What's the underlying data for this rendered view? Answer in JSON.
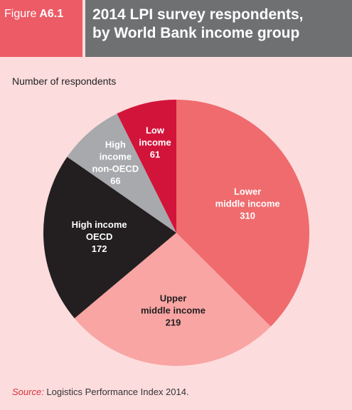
{
  "header": {
    "figure_word": "Figure",
    "figure_number": "A6.1",
    "title_line1": "2014 LPI survey respondents,",
    "title_line2": "by World Bank income group"
  },
  "y_label": "Number of respondents",
  "source": {
    "prefix": "Source:",
    "text": " Logistics Performance Index 2014."
  },
  "chart_data": {
    "type": "pie",
    "title": "2014 LPI survey respondents, by World Bank income group",
    "ylabel": "Number of respondents",
    "slices": [
      {
        "label_lines": [
          "Lower",
          "middle income"
        ],
        "value": 310,
        "color": "#ef6b6e",
        "text_color": "#ffffff"
      },
      {
        "label_lines": [
          "Upper",
          "middle income"
        ],
        "value": 219,
        "color": "#f8a5a3",
        "text_color": "#231f20"
      },
      {
        "label_lines": [
          "High income",
          "OECD"
        ],
        "value": 172,
        "color": "#231f20",
        "text_color": "#ffffff"
      },
      {
        "label_lines": [
          "High",
          "income",
          "non-OECD"
        ],
        "value": 66,
        "color": "#a7a9ac",
        "text_color": "#ffffff"
      },
      {
        "label_lines": [
          "Low",
          "income"
        ],
        "value": 61,
        "color": "#d2143a",
        "text_color": "#ffffff"
      }
    ]
  }
}
